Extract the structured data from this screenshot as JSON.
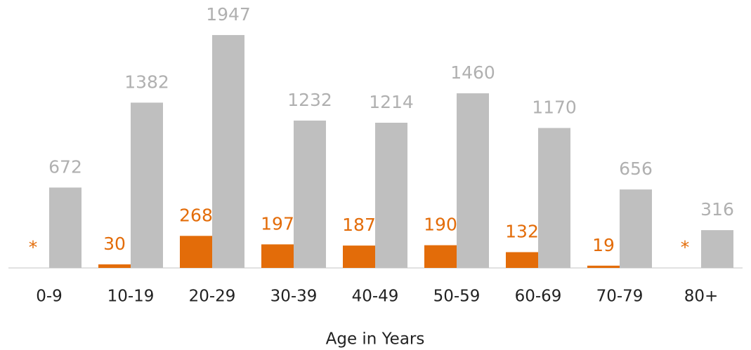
{
  "chart_data": {
    "type": "bar",
    "x_label": "Age in Years",
    "categories": [
      "0-9",
      "10-19",
      "20-29",
      "30-39",
      "40-49",
      "50-59",
      "60-69",
      "70-79",
      "80+"
    ],
    "series": [
      {
        "color": "#e36c09",
        "label_color": "#e36c09",
        "values": [
          null,
          30,
          268,
          197,
          187,
          190,
          132,
          19,
          null
        ],
        "value_labels": [
          "*",
          "30",
          "268",
          "197",
          "187",
          "190",
          "132",
          "19",
          "*"
        ]
      },
      {
        "color": "#bfbfbf",
        "label_color": "#b0b0b0",
        "values": [
          672,
          1382,
          1947,
          1232,
          1214,
          1460,
          1170,
          656,
          316
        ]
      }
    ],
    "ylim": [
      0,
      2240
    ]
  }
}
